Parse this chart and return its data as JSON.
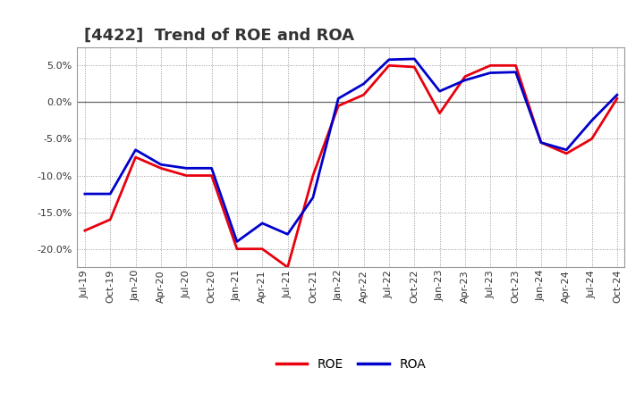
{
  "title": "[4422]  Trend of ROE and ROA",
  "labels": [
    "Jul-19",
    "Oct-19",
    "Jan-20",
    "Apr-20",
    "Jul-20",
    "Oct-20",
    "Jan-21",
    "Apr-21",
    "Jul-21",
    "Oct-21",
    "Jan-22",
    "Apr-22",
    "Jul-22",
    "Oct-22",
    "Jan-23",
    "Apr-23",
    "Jul-23",
    "Oct-23",
    "Jan-24",
    "Apr-24",
    "Jul-24",
    "Oct-24"
  ],
  "ROE": [
    -17.5,
    -16.0,
    -7.5,
    -9.0,
    -10.0,
    -10.0,
    -20.0,
    -20.0,
    -22.5,
    -10.0,
    -0.5,
    1.0,
    5.0,
    4.8,
    -1.5,
    3.5,
    5.0,
    5.0,
    -5.5,
    -7.0,
    -5.0,
    0.5
  ],
  "ROA": [
    -12.5,
    -12.5,
    -6.5,
    -8.5,
    -9.0,
    -9.0,
    -19.0,
    -16.5,
    -18.0,
    -13.0,
    0.5,
    2.5,
    5.8,
    5.9,
    1.5,
    3.0,
    4.0,
    4.1,
    -5.5,
    -6.5,
    -2.5,
    1.0
  ],
  "ROE_color": "#e8000d",
  "ROA_color": "#0000cc",
  "line_width": 2.0,
  "background_color": "#ffffff",
  "plot_bg_color": "#ffffff",
  "grid_color": "#999999",
  "ylim": [
    -22.5,
    7.5
  ],
  "yticks": [
    -20.0,
    -15.0,
    -10.0,
    -5.0,
    0.0,
    5.0
  ],
  "ytick_labels": [
    "-20.0%",
    "-15.0%",
    "-10.0%",
    "-5.0%",
    "0.0%",
    "5.0%"
  ],
  "legend_ROE": "ROE",
  "legend_ROA": "ROA",
  "title_fontsize": 13,
  "tick_fontsize": 8,
  "legend_fontsize": 10
}
